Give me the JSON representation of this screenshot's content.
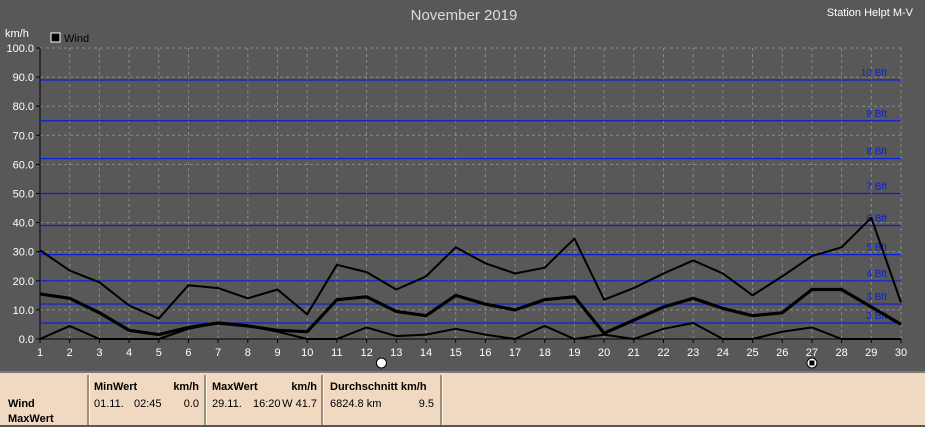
{
  "header": {
    "title": "November 2019",
    "station": "Station Helpt M-V",
    "unit": "km/h"
  },
  "legend": {
    "label": "Wind"
  },
  "beaufort": [
    {
      "label": "2 Bft",
      "value": 5.5
    },
    {
      "label": "3 Bft",
      "value": 12
    },
    {
      "label": "4 Bft",
      "value": 20
    },
    {
      "label": "5 Bft",
      "value": 29
    },
    {
      "label": "6 Bft",
      "value": 39
    },
    {
      "label": "7 Bft",
      "value": 50
    },
    {
      "label": "8 Bft",
      "value": 62
    },
    {
      "label": "9 Bft",
      "value": 75
    },
    {
      "label": "10 Bft",
      "value": 89
    }
  ],
  "colors": {
    "background": "#585858",
    "grid": "#8a8a8a",
    "bft_line": "#0b1fd6",
    "series": "#000000",
    "stats_bg": "#f0d9c0"
  },
  "chart_data": {
    "type": "line",
    "title": "November 2019",
    "ylabel": "km/h",
    "ylim": [
      0,
      100
    ],
    "yticks": [
      "0.0",
      "10.0",
      "20.0",
      "30.0",
      "40.0",
      "50.0",
      "60.0",
      "70.0",
      "80.0",
      "90.0",
      "100.0"
    ],
    "x": [
      1,
      2,
      3,
      4,
      5,
      6,
      7,
      8,
      9,
      10,
      11,
      12,
      13,
      14,
      15,
      16,
      17,
      18,
      19,
      20,
      21,
      22,
      23,
      24,
      25,
      26,
      27,
      28,
      29,
      30
    ],
    "grid": true,
    "legend_position": "top-left",
    "series": [
      {
        "name": "Wind",
        "role": "max",
        "values": [
          30.5,
          23.5,
          19.5,
          11.5,
          7,
          18.5,
          17.5,
          14,
          17,
          8.5,
          25.5,
          23,
          17,
          21.5,
          31.5,
          26,
          22.5,
          24.5,
          34.5,
          13.5,
          17.5,
          22.5,
          27,
          22.5,
          15,
          21.5,
          28.5,
          31.5,
          41.7,
          12.5
        ]
      },
      {
        "name": "Wind",
        "role": "average",
        "values": [
          15.5,
          14,
          9,
          3,
          1.5,
          4,
          5.5,
          4.5,
          3,
          2.5,
          13.5,
          14.5,
          9.5,
          8,
          15,
          12,
          10,
          13.5,
          14.5,
          2,
          6.5,
          11,
          14,
          10.5,
          8,
          9,
          17,
          17,
          11,
          5
        ]
      },
      {
        "name": "Wind",
        "role": "min",
        "values": [
          0,
          4.5,
          0,
          0,
          0,
          3.5,
          5.5,
          4.5,
          2.5,
          0,
          0,
          4,
          1,
          1.5,
          3.5,
          1.5,
          0,
          4.5,
          0,
          1.5,
          0,
          3.5,
          5.5,
          0,
          0,
          2.5,
          4,
          0,
          0,
          0
        ]
      }
    ],
    "markers": [
      {
        "type": "min",
        "day": 12.5
      },
      {
        "type": "max",
        "day": 27
      }
    ]
  },
  "stats": {
    "row_labels": [
      "Wind",
      "MaxWert"
    ],
    "min": {
      "header": "MinWert",
      "unit": "km/h",
      "date": "01.11.",
      "time": "02:45",
      "value": "0.0"
    },
    "max": {
      "header": "MaxWert",
      "unit": "km/h",
      "date": "29.11.",
      "time": "16:20",
      "value": "W 41.7"
    },
    "avg": {
      "header": "Durchschnitt km/h",
      "distance": "6824.8 km",
      "value": "9.5"
    }
  }
}
